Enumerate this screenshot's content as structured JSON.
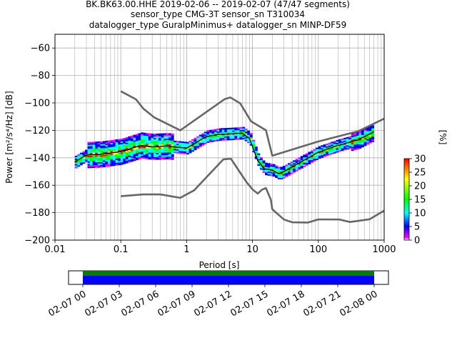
{
  "title": {
    "line1": "BK.BK63.00.HHE   2019-02-06 -- 2019-02-07  (47/47 segments)",
    "line2": "sensor_type CMG-3T sensor_sn T310034",
    "line3": "datalogger_type GuralpMinimus+ datalogger_sn MINP-DF59"
  },
  "chart_data": {
    "type": "heatmap",
    "xlabel": "Period [s]",
    "ylabel": "Power [m²/s⁴/Hz] [dB]",
    "xscale": "log",
    "xlim": [
      0.01,
      1000
    ],
    "ylim": [
      -200,
      -50
    ],
    "xticks": [
      0.01,
      0.1,
      1,
      10,
      100,
      1000
    ],
    "xtick_labels": [
      "0.01",
      "0.1",
      "1",
      "10",
      "100",
      "1000"
    ],
    "yticks": [
      -200,
      -180,
      -160,
      -140,
      -120,
      -100,
      -80,
      -60
    ],
    "ytick_labels": [
      "−200",
      "−180",
      "−160",
      "−140",
      "−120",
      "−100",
      "−80",
      "−60"
    ],
    "grid": true,
    "colorbar": {
      "label": "[%]",
      "range": [
        0,
        30
      ],
      "ticks": [
        0,
        5,
        10,
        15,
        20,
        25,
        30
      ],
      "tick_labels": [
        "0",
        "5",
        "10",
        "15",
        "20",
        "25",
        "30"
      ],
      "colormap": [
        "#ffffff",
        "#ff00ff",
        "#0000ff",
        "#00ffff",
        "#00ff00",
        "#ffff00",
        "#ff0000"
      ]
    },
    "series": [
      {
        "color": "#666666",
        "points": [
          [
            0.1,
            -91.5
          ],
          [
            0.17,
            -97.4
          ],
          [
            0.22,
            -104.2
          ],
          [
            0.32,
            -110.5
          ],
          [
            0.8,
            -120.0
          ],
          [
            3.8,
            -97.2
          ],
          [
            4.6,
            -96.0
          ],
          [
            6.5,
            -100.3
          ],
          [
            9.5,
            -113.4
          ],
          [
            16,
            -119.9
          ],
          [
            20,
            -138.5
          ],
          [
            100,
            -128.1
          ],
          [
            400,
            -120.7
          ],
          [
            1000,
            -111.5
          ]
        ]
      },
      {
        "color": "#666666",
        "points": [
          [
            0.1,
            -168.0
          ],
          [
            0.22,
            -166.7
          ],
          [
            0.4,
            -166.7
          ],
          [
            0.8,
            -169.2
          ],
          [
            1.3,
            -163.7
          ],
          [
            3.6,
            -141.2
          ],
          [
            4.7,
            -140.7
          ],
          [
            8.1,
            -157.7
          ],
          [
            10,
            -163.0
          ],
          [
            12,
            -166.1
          ],
          [
            14,
            -163.2
          ],
          [
            16,
            -162.1
          ],
          [
            19,
            -170.5
          ],
          [
            20,
            -177.5
          ],
          [
            30,
            -185.0
          ],
          [
            40,
            -187.0
          ],
          [
            70,
            -187.2
          ],
          [
            100,
            -184.9
          ],
          [
            210,
            -185.0
          ],
          [
            300,
            -186.8
          ],
          [
            600,
            -184.8
          ],
          [
            1000,
            -178.5
          ]
        ]
      },
      {
        "color": "#000000",
        "points": [
          [
            0.02,
            -143.0
          ],
          [
            0.03,
            -138.0
          ],
          [
            0.05,
            -137.5
          ],
          [
            0.1,
            -135.5
          ],
          [
            0.2,
            -131.0
          ],
          [
            0.3,
            -132.0
          ],
          [
            0.5,
            -131.5
          ],
          [
            1.0,
            -133.0
          ],
          [
            2.0,
            -124.5
          ],
          [
            3.0,
            -123.0
          ],
          [
            5.0,
            -122.5
          ],
          [
            7.0,
            -122.0
          ],
          [
            9.0,
            -126.0
          ],
          [
            12,
            -142.0
          ],
          [
            15,
            -148.0
          ],
          [
            20,
            -149.0
          ],
          [
            25,
            -151.5
          ],
          [
            30,
            -150.0
          ],
          [
            50,
            -144.0
          ],
          [
            100,
            -136.0
          ],
          [
            200,
            -131.0
          ],
          [
            400,
            -127.0
          ],
          [
            700,
            -121.0
          ]
        ]
      }
    ],
    "data_availability": {
      "tick_labels": [
        "02-07 00",
        "02-07 03",
        "02-07 06",
        "02-07 09",
        "02-07 12",
        "02-07 15",
        "02-07 18",
        "02-07 21",
        "02-08 00"
      ],
      "colors": [
        "#008000",
        "#0000ff"
      ]
    }
  }
}
